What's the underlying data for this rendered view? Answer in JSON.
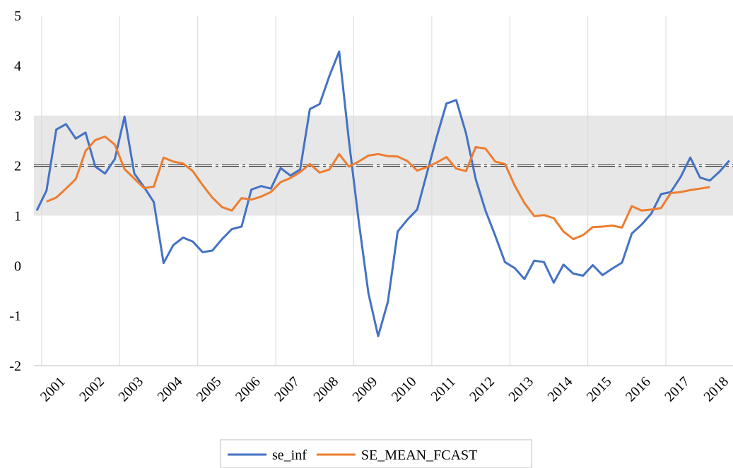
{
  "chart_data": {
    "type": "line",
    "categories": [
      null,
      null,
      "2001",
      null,
      null,
      null,
      "2002",
      null,
      null,
      null,
      "2003",
      null,
      null,
      null,
      "2004",
      null,
      null,
      null,
      "2005",
      null,
      null,
      null,
      "2006",
      null,
      null,
      null,
      "2007",
      null,
      null,
      null,
      "2008",
      null,
      null,
      null,
      "2009",
      null,
      null,
      null,
      "2010",
      null,
      null,
      null,
      "2011",
      null,
      null,
      null,
      "2012",
      null,
      null,
      null,
      "2013",
      null,
      null,
      null,
      "2014",
      null,
      null,
      null,
      "2015",
      null,
      null,
      null,
      "2016",
      null,
      null,
      null,
      "2017",
      null,
      null,
      null,
      "2018",
      null
    ],
    "series": [
      {
        "name": "se_inf",
        "color": "#4472c4",
        "values": [
          1.1,
          1.5,
          2.72,
          2.83,
          2.54,
          2.66,
          1.98,
          1.84,
          2.13,
          2.98,
          1.84,
          1.57,
          1.27,
          0.05,
          0.41,
          0.56,
          0.48,
          0.27,
          0.3,
          0.53,
          0.73,
          0.78,
          1.52,
          1.59,
          1.54,
          1.95,
          1.8,
          1.92,
          3.13,
          3.23,
          3.79,
          4.28,
          2.5,
          0.9,
          -0.55,
          -1.41,
          -0.72,
          0.68,
          0.92,
          1.12,
          1.85,
          2.57,
          3.24,
          3.31,
          2.65,
          1.73,
          1.1,
          0.6,
          0.07,
          -0.05,
          -0.27,
          0.1,
          0.07,
          -0.34,
          0.02,
          -0.16,
          -0.2,
          0.01,
          -0.19,
          -0.06,
          0.06,
          0.64,
          0.82,
          1.04,
          1.43,
          1.47,
          1.77,
          2.16,
          1.76,
          1.7,
          1.88,
          2.1
        ]
      },
      {
        "name": "SE_MEAN_FCAST",
        "color": "#ed7d31",
        "values": [
          null,
          1.28,
          1.36,
          1.54,
          1.73,
          2.29,
          2.51,
          2.58,
          2.42,
          1.93,
          1.74,
          1.55,
          1.58,
          2.16,
          2.08,
          2.04,
          1.89,
          1.61,
          1.36,
          1.17,
          1.1,
          1.35,
          1.32,
          1.38,
          1.47,
          1.67,
          1.75,
          1.87,
          2.03,
          1.86,
          1.92,
          2.23,
          1.98,
          2.08,
          2.2,
          2.23,
          2.19,
          2.18,
          2.09,
          1.9,
          1.97,
          2.06,
          2.17,
          1.94,
          1.89,
          2.37,
          2.34,
          2.08,
          2.03,
          1.6,
          1.25,
          0.99,
          1.01,
          0.95,
          0.68,
          0.53,
          0.61,
          0.77,
          0.78,
          0.8,
          0.76,
          1.19,
          1.1,
          1.12,
          1.15,
          1.45,
          1.47,
          1.51,
          1.54,
          1.57,
          null,
          null
        ]
      }
    ],
    "ylim": [
      -2,
      5
    ],
    "yticks": [
      -2,
      -1,
      0,
      1,
      2,
      3,
      4,
      5
    ],
    "band": [
      1,
      3
    ],
    "band_color": "#e7e7e7",
    "reference_line": 2,
    "grid": true,
    "legend": "bottom"
  }
}
